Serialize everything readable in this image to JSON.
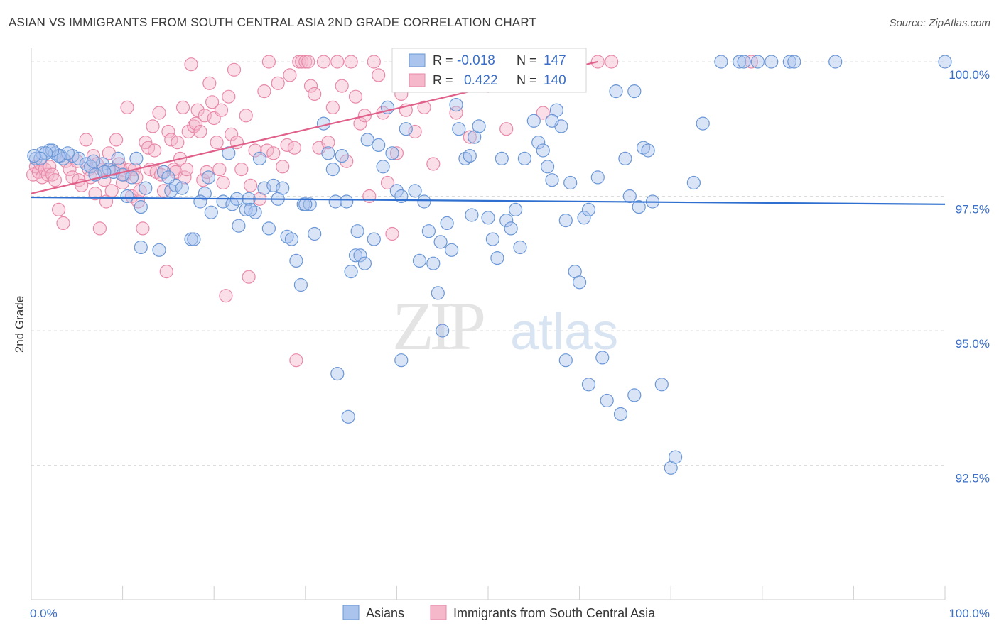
{
  "header": {
    "title": "ASIAN VS IMMIGRANTS FROM SOUTH CENTRAL ASIA 2ND GRADE CORRELATION CHART",
    "source": "Source: ZipAtlas.com"
  },
  "watermark": {
    "zip": "ZIP",
    "atlas": "atlas"
  },
  "colors": {
    "asians_fill": "#aac4ee",
    "asians_stroke": "#6b97d6",
    "asians_line": "#2f6fcf",
    "immigrants_fill": "#f5b8cb",
    "immigrants_stroke": "#e889a8",
    "immigrants_line": "#e0608a",
    "value_text": "#3b6fc7",
    "grid": "#dddddd"
  },
  "legend_box": {
    "rows": [
      {
        "r_label": "R =",
        "r_value": "-0.018",
        "n_label": "N =",
        "n_value": "147"
      },
      {
        "r_label": "R =",
        "r_value": "0.422",
        "n_label": "N =",
        "n_value": "140"
      }
    ]
  },
  "chart_data": {
    "type": "scatter",
    "title": "ASIAN VS IMMIGRANTS FROM SOUTH CENTRAL ASIA 2ND GRADE CORRELATION CHART",
    "xlabel": "",
    "ylabel": "2nd Grade",
    "xlim": [
      0,
      100
    ],
    "ylim": [
      90.0,
      100.25
    ],
    "x_tick_labels": [
      "0.0%",
      "100.0%"
    ],
    "y_ticks": [
      100.0,
      97.5,
      95.0,
      92.5
    ],
    "y_tick_labels": [
      "100.0%",
      "97.5%",
      "95.0%",
      "92.5%"
    ],
    "grid": true,
    "legend_position": "bottom",
    "series": [
      {
        "name": "Asians",
        "R": -0.018,
        "N": 147,
        "trend": {
          "x": [
            0,
            100
          ],
          "y": [
            97.48,
            97.35
          ]
        },
        "points": [
          [
            0.5,
            98.2
          ],
          [
            1.2,
            98.3
          ],
          [
            2.0,
            98.35
          ],
          [
            2.6,
            98.3
          ],
          [
            3.2,
            98.25
          ],
          [
            3.5,
            98.2
          ],
          [
            4.5,
            98.25
          ],
          [
            5.2,
            98.2
          ],
          [
            6.0,
            98.1
          ],
          [
            6.5,
            98.05
          ],
          [
            7.0,
            97.9
          ],
          [
            7.8,
            98.1
          ],
          [
            8.5,
            98.0
          ],
          [
            9.0,
            97.95
          ],
          [
            9.5,
            98.2
          ],
          [
            10.5,
            97.5
          ],
          [
            11.0,
            97.85
          ],
          [
            11.5,
            98.2
          ],
          [
            12.0,
            97.3
          ],
          [
            12.5,
            97.65
          ],
          [
            12.0,
            96.55
          ],
          [
            14.0,
            96.5
          ],
          [
            14.5,
            97.95
          ],
          [
            15.3,
            97.6
          ],
          [
            15.8,
            97.7
          ],
          [
            16.5,
            97.65
          ],
          [
            17.5,
            96.7
          ],
          [
            17.8,
            96.7
          ],
          [
            19.0,
            97.55
          ],
          [
            19.4,
            97.85
          ],
          [
            19.7,
            97.2
          ],
          [
            21.0,
            97.4
          ],
          [
            21.6,
            98.3
          ],
          [
            22.0,
            97.35
          ],
          [
            22.5,
            97.45
          ],
          [
            22.7,
            96.95
          ],
          [
            23.5,
            97.25
          ],
          [
            23.8,
            97.45
          ],
          [
            24.5,
            97.2
          ],
          [
            25.0,
            98.2
          ],
          [
            25.5,
            97.65
          ],
          [
            26.5,
            97.7
          ],
          [
            27.0,
            97.45
          ],
          [
            27.5,
            97.65
          ],
          [
            28.0,
            96.75
          ],
          [
            28.5,
            96.7
          ],
          [
            29.0,
            96.3
          ],
          [
            29.5,
            95.85
          ],
          [
            29.8,
            97.35
          ],
          [
            30.5,
            97.35
          ],
          [
            31.0,
            96.8
          ],
          [
            32.0,
            98.85
          ],
          [
            32.5,
            98.3
          ],
          [
            33.0,
            98.0
          ],
          [
            33.3,
            97.4
          ],
          [
            34.0,
            98.25
          ],
          [
            34.5,
            97.4
          ],
          [
            35.0,
            96.1
          ],
          [
            35.5,
            96.4
          ],
          [
            35.7,
            96.85
          ],
          [
            36.0,
            96.4
          ],
          [
            36.5,
            96.25
          ],
          [
            36.8,
            98.55
          ],
          [
            37.5,
            96.7
          ],
          [
            38.0,
            98.45
          ],
          [
            38.5,
            98.05
          ],
          [
            39.0,
            99.15
          ],
          [
            39.5,
            98.3
          ],
          [
            40.0,
            97.6
          ],
          [
            40.5,
            97.5
          ],
          [
            41.0,
            98.75
          ],
          [
            42.0,
            97.6
          ],
          [
            42.5,
            96.3
          ],
          [
            43.0,
            97.4
          ],
          [
            43.5,
            96.85
          ],
          [
            44.0,
            96.25
          ],
          [
            44.5,
            95.7
          ],
          [
            45.0,
            95.0
          ],
          [
            45.5,
            97.0
          ],
          [
            46.0,
            96.5
          ],
          [
            46.5,
            99.2
          ],
          [
            46.8,
            98.75
          ],
          [
            47.5,
            98.2
          ],
          [
            48.0,
            98.25
          ],
          [
            48.5,
            98.6
          ],
          [
            49.0,
            98.8
          ],
          [
            50.0,
            97.1
          ],
          [
            50.5,
            96.7
          ],
          [
            51.0,
            96.35
          ],
          [
            51.5,
            98.2
          ],
          [
            52.0,
            97.05
          ],
          [
            52.5,
            96.9
          ],
          [
            53.0,
            97.25
          ],
          [
            53.5,
            96.55
          ],
          [
            54.0,
            98.2
          ],
          [
            55.0,
            98.9
          ],
          [
            55.5,
            98.5
          ],
          [
            56.0,
            98.35
          ],
          [
            56.5,
            98.05
          ],
          [
            57.0,
            97.8
          ],
          [
            57.5,
            99.1
          ],
          [
            58.0,
            98.8
          ],
          [
            58.5,
            97.05
          ],
          [
            59.0,
            97.75
          ],
          [
            59.5,
            96.1
          ],
          [
            60.0,
            95.9
          ],
          [
            60.5,
            97.1
          ],
          [
            61.0,
            97.25
          ],
          [
            62.0,
            97.85
          ],
          [
            62.5,
            94.5
          ],
          [
            63.0,
            93.7
          ],
          [
            64.0,
            99.45
          ],
          [
            64.5,
            93.45
          ],
          [
            65.0,
            98.2
          ],
          [
            65.5,
            97.5
          ],
          [
            66.0,
            99.45
          ],
          [
            66.5,
            97.3
          ],
          [
            67.0,
            98.4
          ],
          [
            67.5,
            98.35
          ],
          [
            68.0,
            97.4
          ],
          [
            69.0,
            94.0
          ],
          [
            70.0,
            92.45
          ],
          [
            70.5,
            92.65
          ],
          [
            72.5,
            97.75
          ],
          [
            73.5,
            98.85
          ],
          [
            75.5,
            100.0
          ],
          [
            77.5,
            100.0
          ],
          [
            78.0,
            100.0
          ],
          [
            79.5,
            100.0
          ],
          [
            81.0,
            100.0
          ],
          [
            83.0,
            100.0
          ],
          [
            83.5,
            100.0
          ],
          [
            88.0,
            100.0
          ],
          [
            100.0,
            100.0
          ],
          [
            30.0,
            97.35
          ],
          [
            34.7,
            93.4
          ],
          [
            33.5,
            94.2
          ],
          [
            40.5,
            94.45
          ],
          [
            58.5,
            94.45
          ],
          [
            61.0,
            94.0
          ],
          [
            66.0,
            93.8
          ],
          [
            57.0,
            98.9
          ],
          [
            24.0,
            97.25
          ],
          [
            26.0,
            96.9
          ],
          [
            18.5,
            97.4
          ],
          [
            15.0,
            97.85
          ],
          [
            10.0,
            97.9
          ],
          [
            8.0,
            97.95
          ],
          [
            6.8,
            98.15
          ],
          [
            4.0,
            98.3
          ],
          [
            3.0,
            98.25
          ],
          [
            2.3,
            98.35
          ],
          [
            1.6,
            98.3
          ],
          [
            1.0,
            98.2
          ],
          [
            0.3,
            98.25
          ],
          [
            44.8,
            96.65
          ],
          [
            48.2,
            97.15
          ]
        ]
      },
      {
        "name": "Immigrants from South Central Asia",
        "R": 0.422,
        "N": 140,
        "trend": {
          "x": [
            0,
            62
          ],
          "y": [
            97.55,
            100.0
          ]
        },
        "points": [
          [
            0.2,
            97.9
          ],
          [
            0.5,
            98.05
          ],
          [
            0.8,
            97.95
          ],
          [
            1.0,
            98.1
          ],
          [
            1.2,
            97.85
          ],
          [
            1.5,
            98.0
          ],
          [
            1.8,
            97.9
          ],
          [
            2.0,
            98.05
          ],
          [
            2.3,
            97.9
          ],
          [
            2.6,
            97.8
          ],
          [
            3.0,
            97.25
          ],
          [
            3.5,
            97.0
          ],
          [
            3.8,
            98.15
          ],
          [
            4.2,
            98.0
          ],
          [
            4.5,
            97.85
          ],
          [
            5.0,
            98.15
          ],
          [
            5.2,
            97.8
          ],
          [
            5.5,
            97.7
          ],
          [
            6.0,
            98.55
          ],
          [
            6.3,
            98.0
          ],
          [
            6.5,
            97.85
          ],
          [
            6.8,
            98.25
          ],
          [
            7.0,
            97.55
          ],
          [
            7.2,
            98.1
          ],
          [
            7.5,
            96.9
          ],
          [
            7.8,
            98.0
          ],
          [
            8.0,
            97.8
          ],
          [
            8.2,
            97.4
          ],
          [
            8.5,
            98.3
          ],
          [
            8.8,
            97.6
          ],
          [
            9.0,
            98.0
          ],
          [
            9.3,
            98.55
          ],
          [
            9.6,
            98.1
          ],
          [
            9.8,
            98.0
          ],
          [
            10.0,
            97.75
          ],
          [
            10.2,
            97.9
          ],
          [
            10.5,
            99.15
          ],
          [
            10.8,
            98.0
          ],
          [
            11.0,
            97.5
          ],
          [
            11.3,
            98.0
          ],
          [
            11.5,
            97.85
          ],
          [
            11.7,
            97.4
          ],
          [
            11.9,
            97.6
          ],
          [
            12.2,
            96.9
          ],
          [
            12.5,
            98.5
          ],
          [
            12.8,
            98.4
          ],
          [
            13.0,
            98.0
          ],
          [
            13.3,
            98.8
          ],
          [
            13.5,
            98.35
          ],
          [
            13.7,
            97.95
          ],
          [
            14.0,
            99.05
          ],
          [
            14.2,
            97.9
          ],
          [
            14.5,
            97.6
          ],
          [
            14.8,
            96.1
          ],
          [
            15.0,
            98.7
          ],
          [
            15.3,
            98.55
          ],
          [
            15.6,
            98.0
          ],
          [
            15.8,
            97.95
          ],
          [
            16.0,
            98.5
          ],
          [
            16.3,
            98.2
          ],
          [
            16.6,
            99.15
          ],
          [
            16.8,
            97.85
          ],
          [
            17.0,
            98.0
          ],
          [
            17.2,
            98.7
          ],
          [
            17.5,
            99.95
          ],
          [
            17.8,
            98.8
          ],
          [
            18.0,
            98.85
          ],
          [
            18.2,
            99.1
          ],
          [
            18.5,
            98.7
          ],
          [
            18.8,
            97.8
          ],
          [
            19.0,
            99.0
          ],
          [
            19.2,
            97.95
          ],
          [
            19.5,
            99.6
          ],
          [
            19.8,
            99.25
          ],
          [
            20.0,
            98.95
          ],
          [
            20.3,
            98.5
          ],
          [
            20.6,
            98.0
          ],
          [
            20.8,
            99.1
          ],
          [
            21.0,
            97.75
          ],
          [
            21.3,
            95.65
          ],
          [
            21.6,
            99.35
          ],
          [
            21.9,
            98.65
          ],
          [
            22.2,
            99.85
          ],
          [
            22.5,
            98.5
          ],
          [
            23.0,
            98.0
          ],
          [
            23.5,
            99.0
          ],
          [
            23.8,
            96.0
          ],
          [
            24.0,
            97.7
          ],
          [
            24.5,
            98.35
          ],
          [
            25.0,
            97.45
          ],
          [
            25.5,
            99.45
          ],
          [
            25.8,
            98.35
          ],
          [
            26.0,
            100.0
          ],
          [
            26.5,
            98.3
          ],
          [
            27.0,
            99.6
          ],
          [
            27.5,
            98.05
          ],
          [
            28.0,
            98.45
          ],
          [
            28.3,
            99.75
          ],
          [
            28.8,
            98.4
          ],
          [
            29.0,
            94.45
          ],
          [
            29.3,
            100.0
          ],
          [
            29.6,
            100.0
          ],
          [
            30.0,
            100.0
          ],
          [
            30.3,
            100.0
          ],
          [
            30.6,
            99.55
          ],
          [
            31.0,
            99.4
          ],
          [
            31.5,
            98.4
          ],
          [
            32.0,
            100.0
          ],
          [
            32.5,
            98.5
          ],
          [
            33.0,
            99.15
          ],
          [
            33.5,
            100.0
          ],
          [
            34.0,
            99.55
          ],
          [
            34.5,
            98.15
          ],
          [
            35.0,
            100.0
          ],
          [
            35.5,
            99.35
          ],
          [
            36.0,
            98.85
          ],
          [
            36.5,
            99.0
          ],
          [
            37.0,
            97.5
          ],
          [
            37.5,
            100.0
          ],
          [
            38.0,
            99.75
          ],
          [
            38.5,
            99.05
          ],
          [
            39.0,
            97.75
          ],
          [
            39.5,
            96.8
          ],
          [
            40.0,
            98.3
          ],
          [
            40.5,
            99.4
          ],
          [
            41.0,
            99.1
          ],
          [
            42.0,
            98.7
          ],
          [
            43.0,
            99.15
          ],
          [
            44.0,
            98.1
          ],
          [
            46.5,
            99.05
          ],
          [
            48.0,
            98.6
          ],
          [
            50.0,
            99.55
          ],
          [
            52.0,
            98.75
          ],
          [
            54.0,
            99.6
          ],
          [
            56.0,
            99.05
          ],
          [
            58.0,
            100.0
          ],
          [
            60.0,
            99.7
          ],
          [
            62.0,
            100.0
          ],
          [
            63.5,
            100.0
          ],
          [
            78.8,
            100.0
          ]
        ]
      }
    ]
  },
  "bottom_legend": {
    "items": [
      {
        "label": "Asians"
      },
      {
        "label": "Immigrants from South Central Asia"
      }
    ]
  }
}
